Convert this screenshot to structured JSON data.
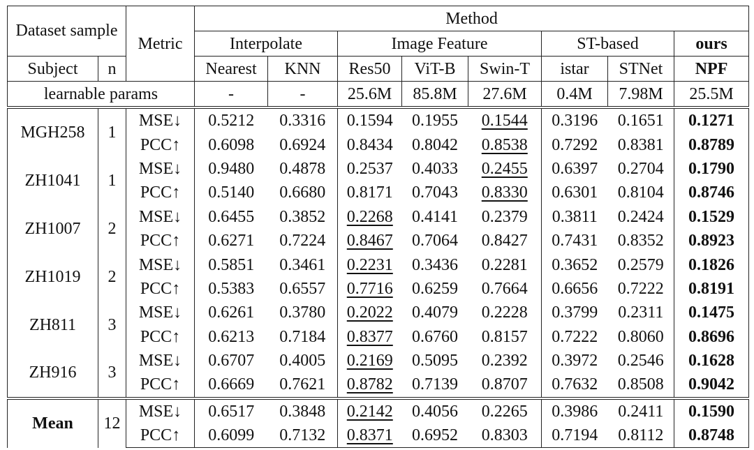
{
  "table": {
    "header": {
      "dataset_sample": "Dataset sample",
      "metric": "Metric",
      "method": "Method",
      "groups": [
        "Interpolate",
        "Image Feature",
        "ST-based",
        "ours"
      ],
      "subject": "Subject",
      "n": "n",
      "methods": [
        "Nearest",
        "KNN",
        "Res50",
        "ViT-B",
        "Swin-T",
        "istar",
        "STNet",
        "NPF"
      ],
      "params_label": "learnable params",
      "params": [
        "-",
        "-",
        "25.6M",
        "85.8M",
        "27.6M",
        "0.4M",
        "7.98M",
        "25.5M"
      ]
    },
    "subjects": [
      {
        "name": "MGH258",
        "n": "1",
        "rows": [
          {
            "metric": "MSE↓",
            "values": [
              "0.5212",
              "0.3316",
              "0.1594",
              "0.1955",
              "0.1544",
              "0.3196",
              "0.1651",
              "0.1271"
            ],
            "underline": 4
          },
          {
            "metric": "PCC↑",
            "values": [
              "0.6098",
              "0.6924",
              "0.8434",
              "0.8042",
              "0.8538",
              "0.7292",
              "0.8381",
              "0.8789"
            ],
            "underline": 4
          }
        ]
      },
      {
        "name": "ZH1041",
        "n": "1",
        "rows": [
          {
            "metric": "MSE↓",
            "values": [
              "0.9480",
              "0.4878",
              "0.2537",
              "0.4033",
              "0.2455",
              "0.6397",
              "0.2704",
              "0.1790"
            ],
            "underline": 4
          },
          {
            "metric": "PCC↑",
            "values": [
              "0.5140",
              "0.6680",
              "0.8171",
              "0.7043",
              "0.8330",
              "0.6301",
              "0.8104",
              "0.8746"
            ],
            "underline": 4
          }
        ]
      },
      {
        "name": "ZH1007",
        "n": "2",
        "rows": [
          {
            "metric": "MSE↓",
            "values": [
              "0.6455",
              "0.3852",
              "0.2268",
              "0.4141",
              "0.2379",
              "0.3811",
              "0.2424",
              "0.1529"
            ],
            "underline": 2
          },
          {
            "metric": "PCC↑",
            "values": [
              "0.6271",
              "0.7224",
              "0.8467",
              "0.7064",
              "0.8427",
              "0.7431",
              "0.8352",
              "0.8923"
            ],
            "underline": 2
          }
        ]
      },
      {
        "name": "ZH1019",
        "n": "2",
        "rows": [
          {
            "metric": "MSE↓",
            "values": [
              "0.5851",
              "0.3461",
              "0.2231",
              "0.3436",
              "0.2281",
              "0.3652",
              "0.2579",
              "0.1826"
            ],
            "underline": 2
          },
          {
            "metric": "PCC↑",
            "values": [
              "0.5383",
              "0.6557",
              "0.7716",
              "0.6259",
              "0.7664",
              "0.6656",
              "0.7222",
              "0.8191"
            ],
            "underline": 2
          }
        ]
      },
      {
        "name": "ZH811",
        "n": "3",
        "rows": [
          {
            "metric": "MSE↓",
            "values": [
              "0.6261",
              "0.3780",
              "0.2022",
              "0.4079",
              "0.2228",
              "0.3799",
              "0.2311",
              "0.1475"
            ],
            "underline": 2
          },
          {
            "metric": "PCC↑",
            "values": [
              "0.6213",
              "0.7184",
              "0.8377",
              "0.6760",
              "0.8157",
              "0.7222",
              "0.8060",
              "0.8696"
            ],
            "underline": 2
          }
        ]
      },
      {
        "name": "ZH916",
        "n": "3",
        "rows": [
          {
            "metric": "MSE↓",
            "values": [
              "0.6707",
              "0.4005",
              "0.2169",
              "0.5095",
              "0.2392",
              "0.3972",
              "0.2546",
              "0.1628"
            ],
            "underline": 2
          },
          {
            "metric": "PCC↑",
            "values": [
              "0.6669",
              "0.7621",
              "0.8782",
              "0.7139",
              "0.8707",
              "0.7632",
              "0.8508",
              "0.9042"
            ],
            "underline": 2
          }
        ]
      }
    ],
    "mean": {
      "name": "Mean",
      "n": "12",
      "rows": [
        {
          "metric": "MSE↓",
          "values": [
            "0.6517",
            "0.3848",
            "0.2142",
            "0.4056",
            "0.2265",
            "0.3986",
            "0.2411",
            "0.1590"
          ],
          "underline": 2
        },
        {
          "metric": "PCC↑",
          "values": [
            "0.6099",
            "0.7132",
            "0.8371",
            "0.6952",
            "0.8303",
            "0.7194",
            "0.8112",
            "0.8748"
          ],
          "underline": 2
        }
      ]
    }
  }
}
